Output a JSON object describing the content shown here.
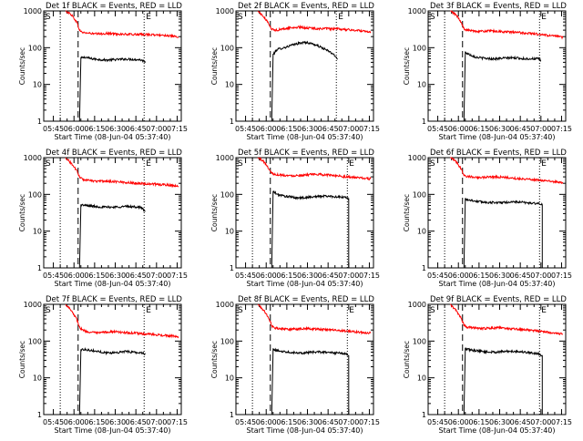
{
  "figure": {
    "time_tick_labels": [
      "05:45",
      "06:00",
      "06:15",
      "06:30",
      "06:45",
      "07:00",
      "07:15"
    ],
    "y_tick_labels": [
      "1",
      "10",
      "100",
      "1000"
    ],
    "ylabel": "Counts/sec",
    "xlabel": "Start Time (08-Jun-04 05:37:40)",
    "start_marker": "S",
    "end_marker": "E"
  },
  "colors": {
    "events": "#000000",
    "lld": "#ff0000",
    "axes": "#000000"
  },
  "chart_data": [
    {
      "type": "line",
      "title": "Det 1f BLACK = Events, RED = LLD",
      "xlabel": "Start Time (08-Jun-04 05:37:40)",
      "ylabel": "Counts/sec",
      "yscale": "log",
      "ylim": [
        1,
        1000
      ],
      "xlim_minutes": [
        0,
        100
      ],
      "markers": {
        "dotted_left": 12,
        "dashed": 25,
        "dotted_right": 73
      },
      "series": [
        {
          "name": "Events",
          "color": "#000000",
          "x": [
            26,
            27,
            30,
            35,
            40,
            45,
            50,
            55,
            60,
            65,
            70,
            74
          ],
          "y": [
            1,
            52,
            55,
            50,
            48,
            46,
            47,
            48,
            49,
            48,
            47,
            42
          ],
          "drop_after": false
        },
        {
          "name": "LLD",
          "color": "#ff0000",
          "x": [
            16,
            20,
            24,
            26,
            28,
            32,
            36,
            40,
            45,
            50,
            55,
            60,
            65,
            70,
            75,
            80,
            85,
            90,
            95,
            98
          ],
          "y": [
            1000,
            800,
            500,
            300,
            260,
            250,
            240,
            235,
            245,
            240,
            235,
            230,
            230,
            228,
            230,
            222,
            220,
            215,
            200,
            190
          ]
        }
      ]
    },
    {
      "type": "line",
      "title": "Det 2f BLACK = Events, RED = LLD",
      "xlabel": "Start Time (08-Jun-04 05:37:40)",
      "ylabel": "Counts/sec",
      "yscale": "log",
      "ylim": [
        1,
        1000
      ],
      "xlim_minutes": [
        0,
        100
      ],
      "markers": {
        "dotted_left": 12,
        "dashed": 25,
        "dotted_right": 73
      },
      "series": [
        {
          "name": "Events",
          "color": "#000000",
          "x": [
            26,
            27,
            30,
            35,
            40,
            45,
            50,
            55,
            60,
            65,
            70,
            74
          ],
          "y": [
            1,
            65,
            90,
            100,
            115,
            130,
            140,
            130,
            110,
            90,
            70,
            50
          ],
          "drop_after": false
        },
        {
          "name": "LLD",
          "color": "#ff0000",
          "x": [
            16,
            20,
            24,
            26,
            28,
            32,
            36,
            40,
            45,
            50,
            55,
            60,
            65,
            70,
            75,
            80,
            85,
            90,
            95,
            98
          ],
          "y": [
            1000,
            700,
            450,
            320,
            300,
            310,
            330,
            350,
            360,
            350,
            340,
            330,
            330,
            325,
            320,
            310,
            300,
            290,
            280,
            270
          ]
        }
      ]
    },
    {
      "type": "line",
      "title": "Det 3f BLACK = Events, RED = LLD",
      "xlabel": "Start Time (08-Jun-04 05:37:40)",
      "ylabel": "Counts/sec",
      "yscale": "log",
      "ylim": [
        1,
        1000
      ],
      "xlim_minutes": [
        0,
        100
      ],
      "markers": {
        "dotted_left": 12,
        "dashed": 25,
        "dotted_right": 81
      },
      "series": [
        {
          "name": "Events",
          "color": "#000000",
          "x": [
            26,
            27,
            30,
            35,
            40,
            45,
            50,
            55,
            60,
            65,
            70,
            75,
            80,
            82
          ],
          "y": [
            1,
            75,
            65,
            55,
            52,
            50,
            50,
            52,
            53,
            52,
            50,
            50,
            50,
            45
          ],
          "drop_after": false
        },
        {
          "name": "LLD",
          "color": "#ff0000",
          "x": [
            16,
            20,
            24,
            26,
            28,
            32,
            36,
            40,
            45,
            50,
            55,
            60,
            65,
            70,
            75,
            80,
            85,
            90,
            95,
            98
          ],
          "y": [
            1000,
            800,
            500,
            320,
            300,
            290,
            280,
            280,
            285,
            280,
            270,
            265,
            260,
            250,
            245,
            230,
            220,
            210,
            200,
            190
          ]
        }
      ]
    },
    {
      "type": "line",
      "title": "Det 4f BLACK = Events, RED = LLD",
      "xlabel": "Start Time (08-Jun-04 05:37:40)",
      "ylabel": "Counts/sec",
      "yscale": "log",
      "ylim": [
        1,
        1000
      ],
      "xlim_minutes": [
        0,
        100
      ],
      "markers": {
        "dotted_left": 12,
        "dashed": 25,
        "dotted_right": 73
      },
      "series": [
        {
          "name": "Events",
          "color": "#000000",
          "x": [
            26,
            27,
            30,
            35,
            40,
            45,
            50,
            55,
            60,
            65,
            70,
            74
          ],
          "y": [
            1,
            52,
            50,
            48,
            46,
            45,
            45,
            46,
            47,
            46,
            45,
            35
          ],
          "drop_after": false
        },
        {
          "name": "LLD",
          "color": "#ff0000",
          "x": [
            16,
            20,
            24,
            26,
            28,
            32,
            36,
            40,
            45,
            50,
            55,
            60,
            65,
            70,
            75,
            80,
            85,
            90,
            95,
            98
          ],
          "y": [
            1000,
            700,
            450,
            300,
            260,
            240,
            230,
            225,
            230,
            225,
            220,
            210,
            205,
            200,
            195,
            190,
            185,
            180,
            170,
            165
          ]
        }
      ]
    },
    {
      "type": "line",
      "title": "Det 5f BLACK = Events, RED = LLD",
      "xlabel": "Start Time (08-Jun-04 05:37:40)",
      "ylabel": "Counts/sec",
      "yscale": "log",
      "ylim": [
        1,
        1000
      ],
      "xlim_minutes": [
        0,
        100
      ],
      "markers": {
        "dotted_left": 12,
        "dashed": 25,
        "dotted_right": 81
      },
      "series": [
        {
          "name": "Events",
          "color": "#000000",
          "x": [
            26,
            27,
            30,
            35,
            40,
            45,
            50,
            55,
            60,
            65,
            70,
            75,
            80,
            82
          ],
          "y": [
            1,
            120,
            100,
            90,
            85,
            80,
            82,
            85,
            88,
            90,
            88,
            85,
            82,
            75
          ],
          "drop_after": true
        },
        {
          "name": "LLD",
          "color": "#ff0000",
          "x": [
            16,
            20,
            24,
            26,
            28,
            32,
            36,
            40,
            45,
            50,
            55,
            60,
            65,
            70,
            75,
            80,
            85,
            90,
            95,
            98
          ],
          "y": [
            1000,
            800,
            500,
            380,
            350,
            340,
            330,
            320,
            330,
            340,
            345,
            350,
            340,
            330,
            320,
            300,
            290,
            280,
            270,
            265
          ]
        }
      ]
    },
    {
      "type": "line",
      "title": "Det 6f BLACK = Events, RED = LLD",
      "xlabel": "Start Time (08-Jun-04 05:37:40)",
      "ylabel": "Counts/sec",
      "yscale": "log",
      "ylim": [
        1,
        1000
      ],
      "xlim_minutes": [
        0,
        100
      ],
      "markers": {
        "dotted_left": 12,
        "dashed": 25,
        "dotted_right": 81
      },
      "series": [
        {
          "name": "Events",
          "color": "#000000",
          "x": [
            26,
            27,
            30,
            35,
            40,
            45,
            50,
            55,
            60,
            65,
            70,
            75,
            80,
            83
          ],
          "y": [
            1,
            75,
            70,
            65,
            62,
            60,
            60,
            60,
            62,
            62,
            60,
            58,
            56,
            52
          ],
          "drop_after": true
        },
        {
          "name": "LLD",
          "color": "#ff0000",
          "x": [
            16,
            20,
            24,
            26,
            28,
            32,
            36,
            40,
            45,
            50,
            55,
            60,
            65,
            70,
            75,
            80,
            85,
            90,
            95,
            98
          ],
          "y": [
            1000,
            800,
            500,
            340,
            310,
            300,
            290,
            290,
            300,
            300,
            290,
            280,
            270,
            265,
            255,
            245,
            235,
            225,
            215,
            205
          ]
        }
      ]
    },
    {
      "type": "line",
      "title": "Det 7f BLACK = Events, RED = LLD",
      "xlabel": "Start Time (08-Jun-04 05:37:40)",
      "ylabel": "Counts/sec",
      "yscale": "log",
      "ylim": [
        1,
        1000
      ],
      "xlim_minutes": [
        0,
        100
      ],
      "markers": {
        "dotted_left": 12,
        "dashed": 25,
        "dotted_right": 73
      },
      "series": [
        {
          "name": "Events",
          "color": "#000000",
          "x": [
            26,
            27,
            30,
            35,
            40,
            45,
            50,
            55,
            60,
            65,
            70,
            74
          ],
          "y": [
            1,
            58,
            60,
            55,
            52,
            48,
            48,
            50,
            52,
            50,
            48,
            45
          ],
          "drop_after": false
        },
        {
          "name": "LLD",
          "color": "#ff0000",
          "x": [
            16,
            20,
            24,
            26,
            28,
            32,
            36,
            40,
            45,
            50,
            55,
            60,
            65,
            70,
            75,
            80,
            85,
            90,
            95,
            98
          ],
          "y": [
            1000,
            700,
            400,
            240,
            200,
            180,
            170,
            165,
            175,
            180,
            175,
            170,
            165,
            160,
            155,
            150,
            145,
            140,
            135,
            130
          ]
        }
      ]
    },
    {
      "type": "line",
      "title": "Det 8f BLACK = Events, RED = LLD",
      "xlabel": "Start Time (08-Jun-04 05:37:40)",
      "ylabel": "Counts/sec",
      "yscale": "log",
      "ylim": [
        1,
        1000
      ],
      "xlim_minutes": [
        0,
        100
      ],
      "markers": {
        "dotted_left": 12,
        "dashed": 25,
        "dotted_right": 81
      },
      "series": [
        {
          "name": "Events",
          "color": "#000000",
          "x": [
            26,
            27,
            30,
            35,
            40,
            45,
            50,
            55,
            60,
            65,
            70,
            75,
            80,
            82
          ],
          "y": [
            1,
            58,
            55,
            52,
            50,
            48,
            48,
            50,
            50,
            50,
            48,
            47,
            45,
            40
          ],
          "drop_after": true
        },
        {
          "name": "LLD",
          "color": "#ff0000",
          "x": [
            16,
            20,
            24,
            26,
            28,
            32,
            36,
            40,
            45,
            50,
            55,
            60,
            65,
            70,
            75,
            80,
            85,
            90,
            95,
            98
          ],
          "y": [
            1000,
            700,
            420,
            260,
            230,
            220,
            215,
            210,
            215,
            220,
            215,
            210,
            205,
            200,
            195,
            185,
            180,
            175,
            170,
            165
          ]
        }
      ]
    },
    {
      "type": "line",
      "title": "Det 9f BLACK = Events, RED = LLD",
      "xlabel": "Start Time (08-Jun-04 05:37:40)",
      "ylabel": "Counts/sec",
      "yscale": "log",
      "ylim": [
        1,
        1000
      ],
      "xlim_minutes": [
        0,
        100
      ],
      "markers": {
        "dotted_left": 12,
        "dashed": 25,
        "dotted_right": 81
      },
      "series": [
        {
          "name": "Events",
          "color": "#000000",
          "x": [
            26,
            27,
            30,
            35,
            40,
            45,
            50,
            55,
            60,
            65,
            70,
            75,
            80,
            83
          ],
          "y": [
            1,
            62,
            58,
            55,
            52,
            50,
            50,
            52,
            53,
            52,
            50,
            48,
            45,
            40
          ],
          "drop_after": true
        },
        {
          "name": "LLD",
          "color": "#ff0000",
          "x": [
            16,
            20,
            24,
            26,
            28,
            32,
            36,
            40,
            45,
            50,
            55,
            60,
            65,
            70,
            75,
            80,
            85,
            90,
            95,
            98
          ],
          "y": [
            1000,
            700,
            420,
            270,
            240,
            230,
            225,
            220,
            225,
            230,
            225,
            215,
            210,
            205,
            195,
            185,
            180,
            170,
            160,
            155
          ]
        }
      ]
    }
  ]
}
